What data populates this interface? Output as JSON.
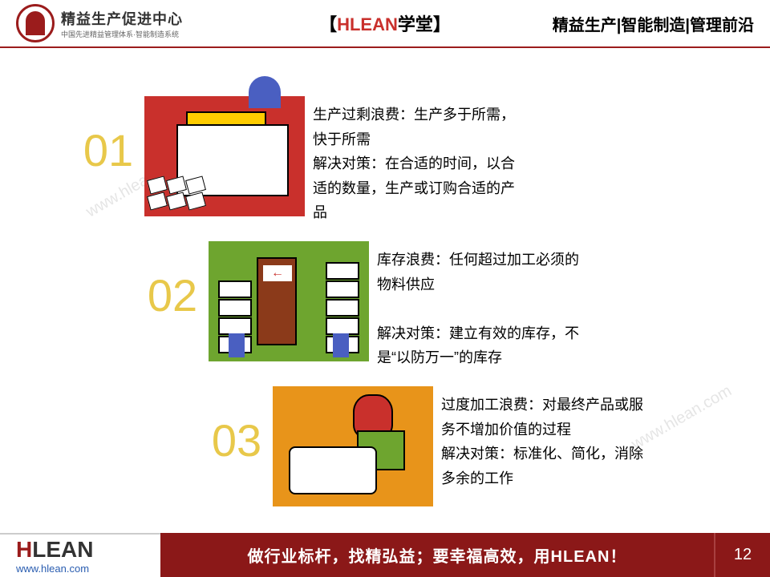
{
  "header": {
    "logo_title": "精益生产促进中心",
    "logo_sub": "中国先进精益管理体系·智能制造系统",
    "center_prefix": "【",
    "center_brand": "HLEAN",
    "center_suffix": "学堂】",
    "right_text": "精益生产|智能制造|管理前沿"
  },
  "colors": {
    "num1": "#e8c84a",
    "num2": "#e8c84a",
    "num3": "#e8c84a",
    "bg1": "#c9302c",
    "bg2": "#6ea52f",
    "bg3": "#e8941a"
  },
  "items": [
    {
      "num": "01",
      "desc": "生产过剩浪费：生产多于所需，快于所需\n解决对策：在合适的时间，以合适的数量，生产或订购合适的产品"
    },
    {
      "num": "02",
      "desc": "库存浪费：任何超过加工必须的物料供应\n\n解决对策：建立有效的库存，不是“以防万一”的库存"
    },
    {
      "num": "03",
      "desc": "过度加工浪费：对最终产品或服务不增加价值的过程\n解决对策：标准化、简化，消除多余的工作"
    }
  ],
  "footer": {
    "logo_h": "H",
    "logo_lean": "LEAN",
    "url": "www.hlean.com",
    "slogan": "做行业标杆，找精弘益；要幸福高效，用HLEAN！",
    "page": "12"
  },
  "watermark": "www.hlean.com"
}
